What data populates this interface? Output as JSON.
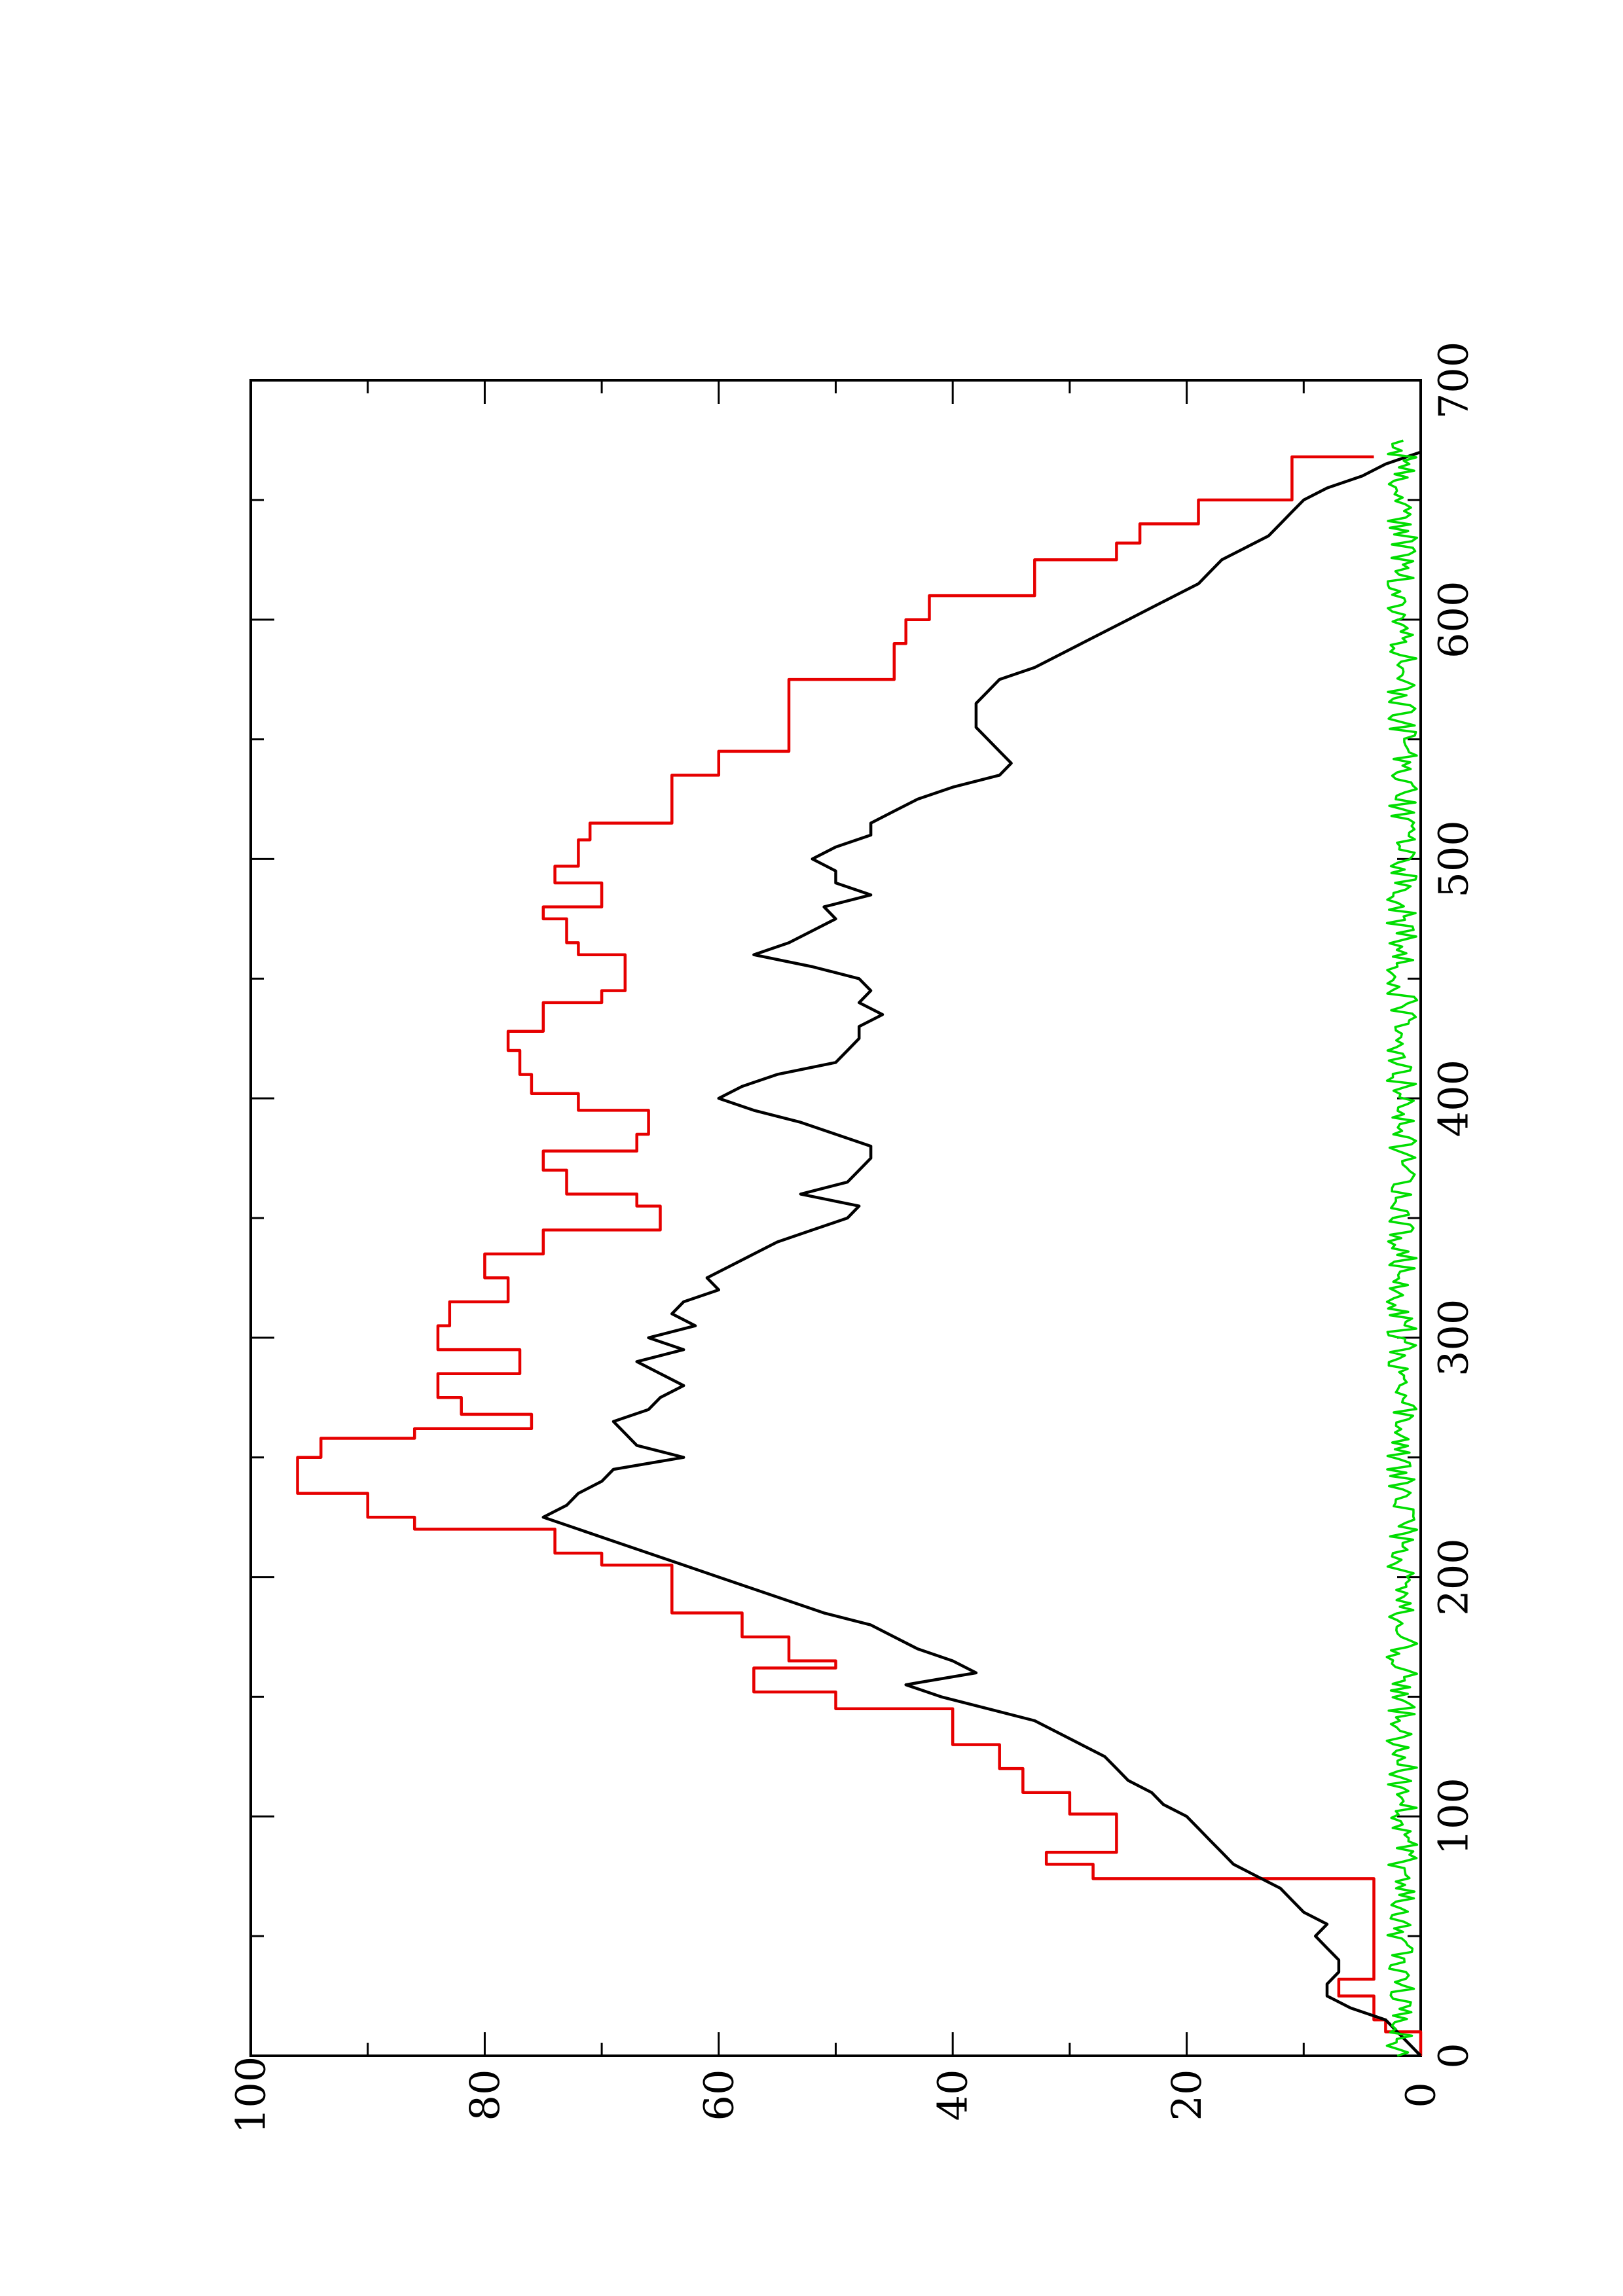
{
  "chart_data": {
    "type": "line",
    "orientation": "rotated-90-counterclockwise",
    "title": "",
    "xlabel": "",
    "ylabel": "",
    "xlim": [
      0,
      700
    ],
    "ylim": [
      0,
      100
    ],
    "x_ticks": [
      "0",
      "100",
      "200",
      "300",
      "400",
      "500",
      "600",
      "700"
    ],
    "y_ticks": [
      "0",
      "20",
      "40",
      "60",
      "80",
      "100"
    ],
    "grid": false,
    "legend": "none",
    "series": [
      {
        "color": "#e60000",
        "step": true,
        "x": [
          0,
          10,
          15,
          25,
          32,
          40,
          66,
          74,
          80,
          85,
          95,
          101,
          110,
          120,
          130,
          145,
          152,
          162,
          165,
          175,
          185,
          195,
          205,
          210,
          220,
          225,
          235,
          250,
          258,
          262,
          268,
          275,
          285,
          295,
          305,
          315,
          325,
          335,
          345,
          355,
          360,
          370,
          378,
          385,
          395,
          402,
          410,
          420,
          428,
          440,
          445,
          460,
          465,
          475,
          480,
          490,
          497,
          508,
          515,
          525,
          535,
          545,
          555,
          575,
          590,
          600,
          610,
          625,
          632,
          640,
          650,
          668
        ],
        "y": [
          0,
          3,
          4,
          7,
          4,
          4,
          4,
          28,
          32,
          26,
          26,
          30,
          34,
          36,
          40,
          50,
          57,
          50,
          54,
          58,
          64,
          64,
          70,
          74,
          86,
          90,
          96,
          94,
          86,
          76,
          82,
          84,
          77,
          84,
          83,
          78,
          80,
          75,
          65,
          67,
          73,
          75,
          67,
          66,
          72,
          76,
          77,
          78,
          75,
          70,
          68,
          72,
          73,
          75,
          70,
          74,
          72,
          71,
          64,
          64,
          60,
          54,
          54,
          45,
          44,
          42,
          33,
          26,
          24,
          19,
          11,
          4
        ]
      },
      {
        "color": "#000000",
        "step": false,
        "x": [
          0,
          10,
          15,
          20,
          25,
          30,
          35,
          40,
          45,
          50,
          55,
          60,
          65,
          70,
          75,
          80,
          85,
          90,
          95,
          100,
          105,
          110,
          115,
          120,
          125,
          130,
          135,
          140,
          145,
          150,
          155,
          160,
          165,
          170,
          175,
          180,
          185,
          190,
          195,
          200,
          205,
          210,
          215,
          220,
          225,
          230,
          235,
          240,
          245,
          250,
          255,
          260,
          265,
          270,
          275,
          280,
          285,
          290,
          295,
          300,
          305,
          310,
          315,
          320,
          325,
          330,
          335,
          340,
          345,
          350,
          355,
          360,
          365,
          370,
          375,
          380,
          385,
          390,
          395,
          400,
          405,
          410,
          415,
          420,
          425,
          430,
          435,
          440,
          445,
          450,
          455,
          460,
          465,
          470,
          475,
          480,
          485,
          490,
          495,
          500,
          505,
          510,
          515,
          520,
          525,
          530,
          535,
          540,
          545,
          550,
          555,
          560,
          565,
          570,
          575,
          580,
          585,
          590,
          595,
          600,
          605,
          610,
          615,
          620,
          625,
          630,
          635,
          640,
          645,
          650,
          655,
          660,
          665,
          670
        ],
        "y": [
          0,
          2,
          3,
          6,
          8,
          8,
          7,
          7,
          8,
          9,
          8,
          10,
          11,
          12,
          14,
          16,
          17,
          18,
          19,
          20,
          22,
          23,
          25,
          26,
          27,
          29,
          31,
          33,
          37,
          41,
          44,
          38,
          40,
          43,
          45,
          47,
          51,
          54,
          57,
          60,
          63,
          66,
          69,
          72,
          75,
          73,
          72,
          70,
          69,
          63,
          67,
          68,
          69,
          66,
          65,
          63,
          65,
          67,
          63,
          66,
          62,
          64,
          63,
          60,
          61,
          59,
          57,
          55,
          52,
          49,
          48,
          53,
          49,
          48,
          47,
          47,
          50,
          53,
          57,
          60,
          58,
          55,
          50,
          49,
          48,
          48,
          46,
          48,
          47,
          48,
          52,
          57,
          54,
          52,
          50,
          51,
          47,
          50,
          50,
          52,
          50,
          47,
          47,
          45,
          43,
          40,
          36,
          35,
          36,
          37,
          38,
          38,
          38,
          37,
          36,
          33,
          31,
          29,
          27,
          25,
          23,
          21,
          19,
          18,
          17,
          15,
          13,
          12,
          11,
          10,
          8,
          5,
          3,
          0
        ]
      },
      {
        "color": "#00dd00",
        "step": false,
        "noise": true,
        "x_range": [
          0,
          675
        ],
        "y_mean": 1.6,
        "y_amplitude": 1.3
      }
    ]
  }
}
